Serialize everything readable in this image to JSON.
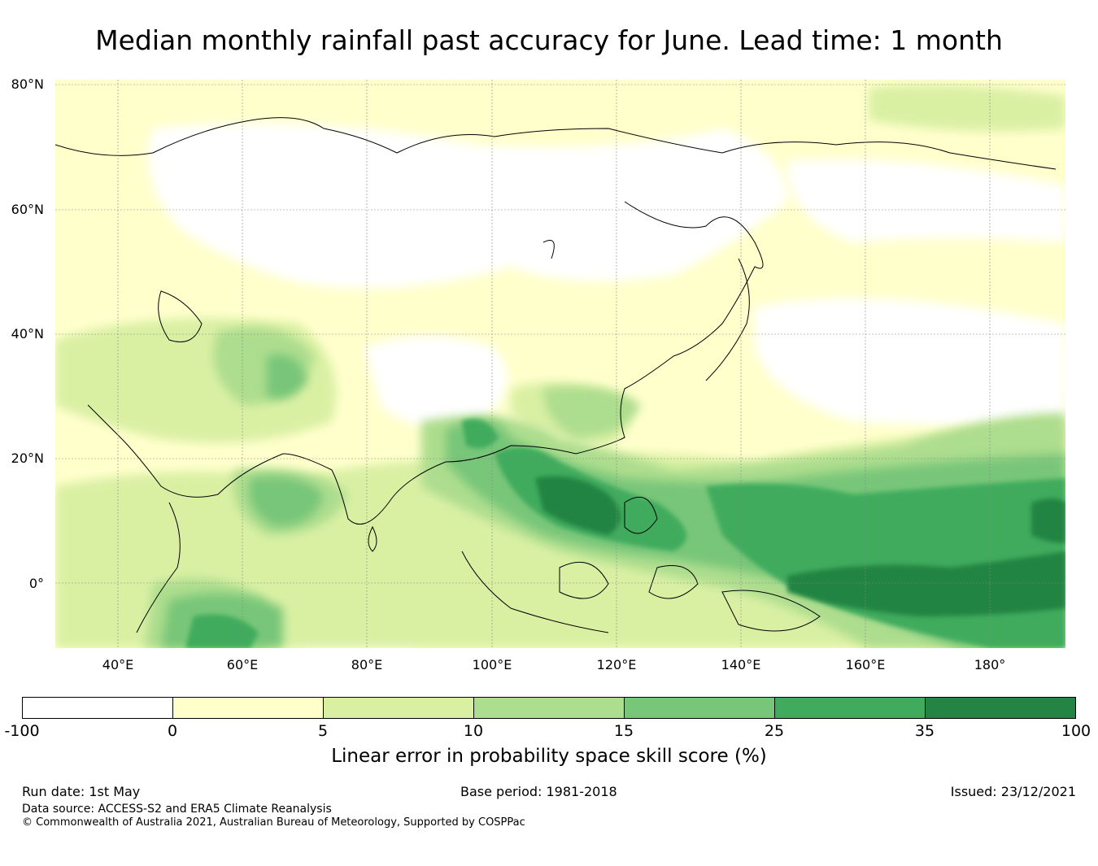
{
  "title": "Median monthly rainfall past accuracy for June. Lead time: 1 month",
  "map": {
    "lat_labels": [
      "80°N",
      "60°N",
      "40°N",
      "20°N",
      "0°"
    ],
    "lon_labels": [
      "40°E",
      "60°E",
      "80°E",
      "100°E",
      "120°E",
      "140°E",
      "160°E",
      "180°"
    ],
    "lon_range": [
      30,
      192
    ],
    "lat_range": [
      -10,
      81
    ],
    "gridlines": true
  },
  "colorbar": {
    "ticks": [
      "-100",
      "0",
      "5",
      "10",
      "15",
      "25",
      "35",
      "100"
    ],
    "colors": [
      "#ffffff",
      "#ffffcc",
      "#d9f0a3",
      "#addd8e",
      "#78c679",
      "#41ab5d",
      "#238443"
    ],
    "label": "Linear error in probability space skill score (%)"
  },
  "footer": {
    "run_date": "Run date: 1st May",
    "base_period": "Base period: 1981-2018",
    "issued": "Issued: 23/12/2021",
    "data_source": "Data source: ACCESS-S2 and ERA5 Climate Reanalysis",
    "copyright": "© Commonwealth of Australia 2021, Australian Bureau of Meteorology, Supported by COSPPac"
  }
}
